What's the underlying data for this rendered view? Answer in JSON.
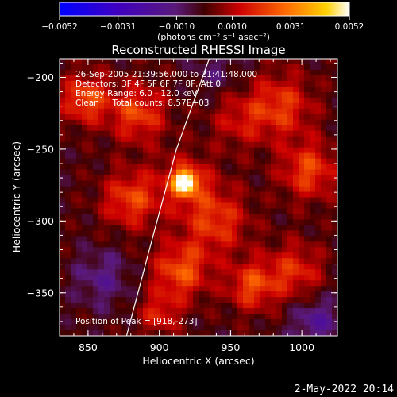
{
  "chart_data": {
    "type": "heatmap",
    "title": "Reconstructed RHESSI Image",
    "xlabel": "Heliocentric X (arcsec)",
    "ylabel": "Heliocentric Y (arcsec)",
    "xlim": [
      830,
      1025
    ],
    "ylim": [
      -380,
      -187
    ],
    "x_ticks": [
      850,
      900,
      950,
      1000
    ],
    "y_ticks": [
      -200,
      -250,
      -300,
      -350
    ],
    "colorbar": {
      "min": -0.0052,
      "max": 0.0052,
      "tick_values": [
        -0.0052,
        -0.0031,
        -0.001,
        0.001,
        0.0031,
        0.0052
      ],
      "tick_labels": [
        "-0.0052",
        "-0.0031",
        "-0.0010",
        "0.0010",
        "0.0031",
        "0.0052"
      ],
      "units": "(photons cm⁻² s⁻¹ asec⁻²)"
    },
    "info_lines": [
      "26-Sep-2005 21:39:56.000 to 21:41:48.000",
      "Detectors: 3F 4F 5F 6F 7F 8F, Att 0",
      "Energy Range: 6.0 - 12.0 keV",
      "Clean     Total counts: 8.57E+03"
    ],
    "peak_label": "Position of Peak = [918,-273]",
    "peak": {
      "x": 918,
      "y": -273
    },
    "limb": [
      [
        935,
        -187
      ],
      [
        912,
        -250
      ],
      [
        893,
        -320
      ],
      [
        877,
        -380
      ]
    ],
    "sources": [
      {
        "x": 918,
        "y": -273,
        "amp": 0.0052,
        "sigma": 5
      },
      {
        "x": 918,
        "y": -273,
        "amp": 0.0018,
        "sigma": 14
      },
      {
        "x": 848,
        "y": -215,
        "amp": 0.0024,
        "sigma": 12
      },
      {
        "x": 885,
        "y": -225,
        "amp": 0.0022,
        "sigma": 14
      },
      {
        "x": 880,
        "y": -285,
        "amp": 0.0022,
        "sigma": 14
      },
      {
        "x": 915,
        "y": -335,
        "amp": 0.0024,
        "sigma": 14
      },
      {
        "x": 940,
        "y": -300,
        "amp": 0.002,
        "sigma": 16
      },
      {
        "x": 985,
        "y": -220,
        "amp": 0.002,
        "sigma": 16
      },
      {
        "x": 1005,
        "y": -265,
        "amp": 0.0022,
        "sigma": 14
      },
      {
        "x": 995,
        "y": -335,
        "amp": 0.0018,
        "sigma": 14
      },
      {
        "x": 965,
        "y": -345,
        "amp": 0.0022,
        "sigma": 12
      },
      {
        "x": 955,
        "y": -230,
        "amp": 0.0012,
        "sigma": 14
      },
      {
        "x": 900,
        "y": -365,
        "amp": 0.0016,
        "sigma": 10
      },
      {
        "x": 860,
        "y": -340,
        "amp": -0.0012,
        "sigma": 14
      },
      {
        "x": 1010,
        "y": -370,
        "amp": -0.0016,
        "sigma": 12
      },
      {
        "x": 940,
        "y": -195,
        "amp": -0.0008,
        "sigma": 12
      }
    ]
  },
  "footer": {
    "date_stamp": "2-May-2022 20:14"
  }
}
